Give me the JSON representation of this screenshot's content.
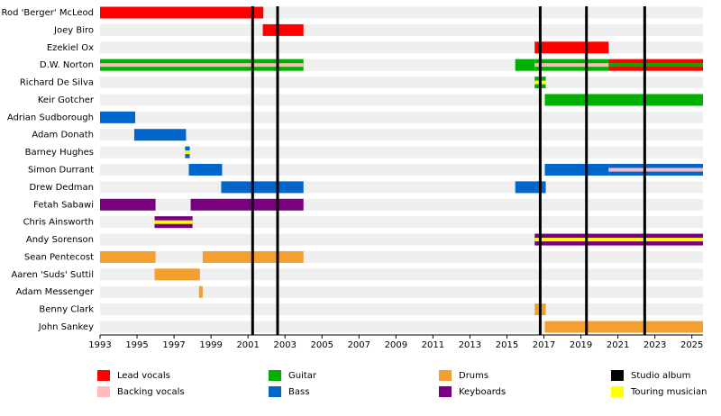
{
  "chart_data": {
    "type": "timeline",
    "xlim": [
      1993,
      2025.6
    ],
    "xticks": [
      1993,
      1995,
      1997,
      1999,
      2001,
      2003,
      2005,
      2007,
      2009,
      2011,
      2013,
      2015,
      2017,
      2019,
      2021,
      2023,
      2025
    ],
    "legend": [
      {
        "name": "Lead vocals",
        "color": "#ff0000"
      },
      {
        "name": "Backing vocals",
        "color": "#ffbbbb"
      },
      {
        "name": "Guitar",
        "color": "#00b000"
      },
      {
        "name": "Bass",
        "color": "#0066cc"
      },
      {
        "name": "Drums",
        "color": "#f4a030"
      },
      {
        "name": "Keyboards",
        "color": "#7a0080"
      },
      {
        "name": "Studio album",
        "color": "#000000"
      },
      {
        "name": "Touring musician",
        "color": "#ffff00"
      }
    ],
    "album_years": [
      2001.25,
      2002.6,
      2016.8,
      2019.3,
      2022.45
    ],
    "members": [
      {
        "name": "Rod 'Berger' McLeod",
        "periods": [
          {
            "start": 1993,
            "end": 2001.83,
            "role": "Lead vocals"
          }
        ]
      },
      {
        "name": "Joey Biro",
        "periods": [
          {
            "start": 2001.8,
            "end": 2004,
            "role": "Lead vocals"
          }
        ]
      },
      {
        "name": "Ezekiel Ox",
        "periods": [
          {
            "start": 2016.5,
            "end": 2020.5,
            "role": "Lead vocals"
          }
        ]
      },
      {
        "name": "D.W. Norton",
        "periods": [
          {
            "start": 1993,
            "end": 2004,
            "role": "Guitar",
            "stripe": "Backing vocals"
          },
          {
            "start": 2015.45,
            "end": 2016.5,
            "role": "Guitar"
          },
          {
            "start": 2016.5,
            "end": 2020.5,
            "role": "Guitar",
            "stripe": "Backing vocals"
          },
          {
            "start": 2020.5,
            "end": 2025.6,
            "role": "Lead vocals",
            "stripe": "Guitar"
          }
        ]
      },
      {
        "name": "Richard De Silva",
        "periods": [
          {
            "start": 2016.5,
            "end": 2017.1,
            "role": "Guitar",
            "stripe": "Touring musician"
          }
        ]
      },
      {
        "name": "Keir Gotcher",
        "periods": [
          {
            "start": 2017.05,
            "end": 2025.6,
            "role": "Guitar"
          }
        ]
      },
      {
        "name": "Adrian Sudborough",
        "periods": [
          {
            "start": 1993,
            "end": 1994.9,
            "role": "Bass"
          }
        ]
      },
      {
        "name": "Adam Donath",
        "periods": [
          {
            "start": 1994.85,
            "end": 1997.65,
            "role": "Bass"
          }
        ]
      },
      {
        "name": "Barney Hughes",
        "periods": [
          {
            "start": 1997.6,
            "end": 1997.85,
            "role": "Bass",
            "stripe": "Touring musician"
          }
        ]
      },
      {
        "name": "Simon Durrant",
        "periods": [
          {
            "start": 1997.8,
            "end": 1999.6,
            "role": "Bass"
          },
          {
            "start": 2017.05,
            "end": 2020.5,
            "role": "Bass"
          },
          {
            "start": 2020.5,
            "end": 2025.6,
            "role": "Bass",
            "stripe": "Backing vocals"
          }
        ]
      },
      {
        "name": "Drew Dedman",
        "periods": [
          {
            "start": 1999.55,
            "end": 2004,
            "role": "Bass"
          },
          {
            "start": 2015.45,
            "end": 2017.1,
            "role": "Bass"
          }
        ]
      },
      {
        "name": "Fetah Sabawi",
        "periods": [
          {
            "start": 1993,
            "end": 1996,
            "role": "Keyboards"
          },
          {
            "start": 1997.9,
            "end": 2004,
            "role": "Keyboards"
          }
        ]
      },
      {
        "name": "Chris Ainsworth",
        "periods": [
          {
            "start": 1995.95,
            "end": 1998,
            "role": "Keyboards",
            "stripe": "Touring musician"
          }
        ]
      },
      {
        "name": "Andy Sorenson",
        "periods": [
          {
            "start": 2016.5,
            "end": 2025.6,
            "role": "Keyboards",
            "stripe": "Touring musician"
          }
        ]
      },
      {
        "name": "Sean Pentecost",
        "periods": [
          {
            "start": 1993,
            "end": 1996,
            "role": "Drums"
          },
          {
            "start": 1998.55,
            "end": 2004,
            "role": "Drums"
          }
        ]
      },
      {
        "name": "Aaren 'Suds' Suttil",
        "periods": [
          {
            "start": 1995.95,
            "end": 1998.4,
            "role": "Drums"
          }
        ]
      },
      {
        "name": "Adam Messenger",
        "periods": [
          {
            "start": 1998.35,
            "end": 1998.55,
            "role": "Drums"
          }
        ]
      },
      {
        "name": "Benny Clark",
        "periods": [
          {
            "start": 2016.5,
            "end": 2017.1,
            "role": "Drums"
          }
        ]
      },
      {
        "name": "John Sankey",
        "periods": [
          {
            "start": 2017.05,
            "end": 2025.6,
            "role": "Drums"
          }
        ]
      }
    ]
  }
}
